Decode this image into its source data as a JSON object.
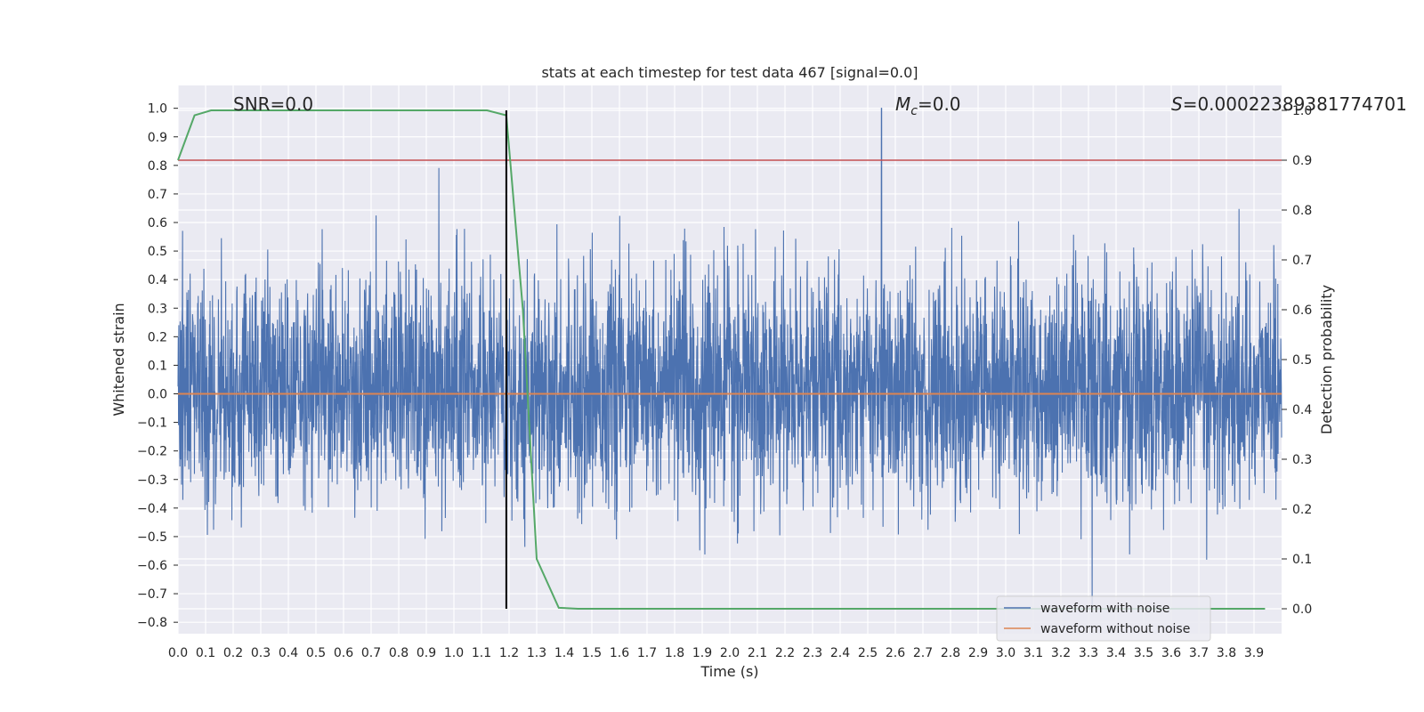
{
  "chart_data": {
    "type": "line",
    "title": "stats at each timestep for test data 467 [signal=0.0]",
    "xlabel": "Time (s)",
    "ylabel_left": "Whitened strain",
    "ylabel_right": "Detection probability",
    "xlim": [
      0.0,
      4.0
    ],
    "ylim_left": [
      -0.84,
      1.08
    ],
    "ylim_right": [
      -0.05,
      1.05
    ],
    "x_ticks": [
      "0.0",
      "0.1",
      "0.2",
      "0.3",
      "0.4",
      "0.5",
      "0.6",
      "0.7",
      "0.8",
      "0.9",
      "1.0",
      "1.1",
      "1.2",
      "1.3",
      "1.4",
      "1.5",
      "1.6",
      "1.7",
      "1.8",
      "1.9",
      "2.0",
      "2.1",
      "2.2",
      "2.3",
      "2.4",
      "2.5",
      "2.6",
      "2.7",
      "2.8",
      "2.9",
      "3.0",
      "3.1",
      "3.2",
      "3.3",
      "3.4",
      "3.5",
      "3.6",
      "3.7",
      "3.8",
      "3.9"
    ],
    "y_left_ticks": [
      "1.0",
      "0.9",
      "0.8",
      "0.7",
      "0.6",
      "0.5",
      "0.4",
      "0.3",
      "0.2",
      "0.1",
      "0.0",
      "−0.1",
      "−0.2",
      "−0.3",
      "−0.4",
      "−0.5",
      "−0.6",
      "−0.7",
      "−0.8"
    ],
    "y_right_ticks": [
      "1.0",
      "0.9",
      "0.8",
      "0.7",
      "0.6",
      "0.5",
      "0.4",
      "0.3",
      "0.2",
      "0.1",
      "0.0"
    ],
    "grid": true,
    "legend_position": "bottom-right",
    "annotations": {
      "snr": "SNR=0.0",
      "mc_symbol": "M",
      "mc_sub": "c",
      "mc_value": "=0.0",
      "s_symbol": "S",
      "s_value": "=0.00022389381774701"
    },
    "series": [
      {
        "name": "waveform with noise",
        "color": "#4c72b0",
        "axis": "left",
        "description_stats": {
          "x_range": [
            0.0,
            4.0
          ],
          "y_min": -0.75,
          "y_max": 1.0,
          "peak_x": 2.55
        }
      },
      {
        "name": "waveform without noise",
        "color": "#dd8452",
        "axis": "left",
        "x": [
          0.0,
          4.0
        ],
        "y": [
          0.0,
          0.0
        ]
      },
      {
        "name": "",
        "color": "#55a868",
        "axis": "right",
        "x": [
          0.0,
          0.06,
          0.12,
          0.2,
          0.4,
          0.6,
          0.8,
          1.0,
          1.12,
          1.19,
          1.25,
          1.3,
          1.38,
          1.45,
          1.6,
          2.0,
          2.5,
          3.0,
          3.5,
          3.94
        ],
        "y": [
          0.9,
          0.99,
          1.0,
          1.0,
          1.0,
          1.0,
          1.0,
          1.0,
          1.0,
          0.99,
          0.6,
          0.1,
          0.002,
          0.0,
          0.0,
          0.0,
          0.0,
          0.0,
          0.0,
          0.0
        ]
      }
    ],
    "reference_lines": {
      "threshold_right": 0.9,
      "threshold_color": "#c44e52",
      "vertical_x": 1.19,
      "vertical_color": "#000000"
    }
  }
}
